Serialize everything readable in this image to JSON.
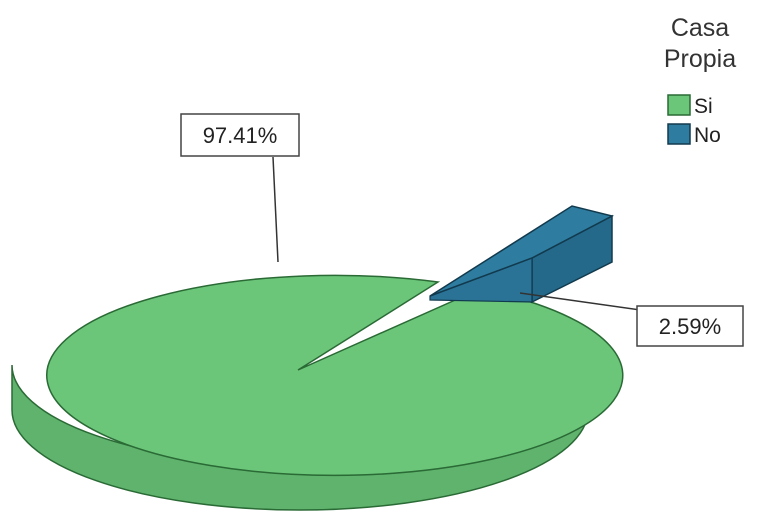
{
  "chart_data": {
    "type": "pie",
    "title": "",
    "legend_title": [
      "Casa",
      "Propia"
    ],
    "legend_position": "top-right",
    "slices": [
      {
        "name": "Si",
        "value": 97.41,
        "label": "97.41%",
        "color": "#6cc67a",
        "exploded": false
      },
      {
        "name": "No",
        "value": 2.59,
        "label": "2.59%",
        "color": "#2e7da0",
        "exploded": true
      }
    ]
  }
}
